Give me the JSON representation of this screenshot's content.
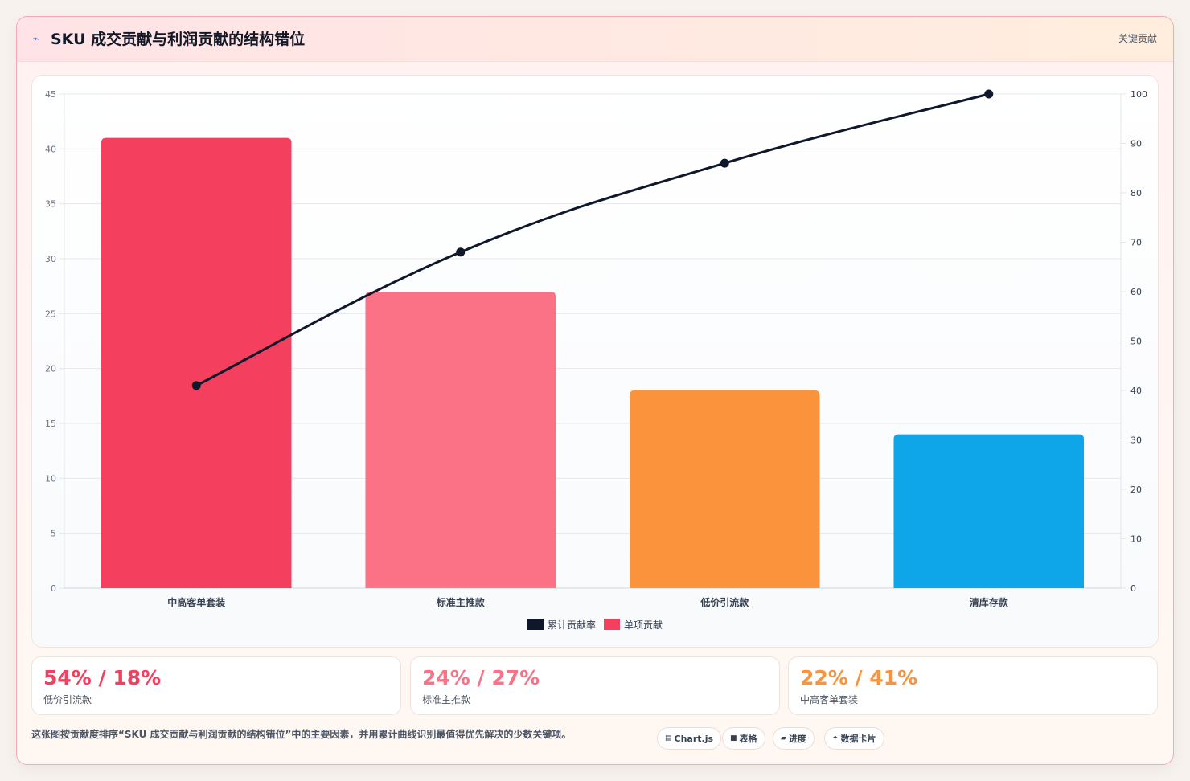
{
  "header": {
    "icon": "trend-icon",
    "title": "SKU 成交贡献与利润贡献的结构错位",
    "tag": "关键贡献"
  },
  "chart_data": {
    "type": "bar",
    "categories": [
      "中高客单套装",
      "标准主推款",
      "低价引流款",
      "清库存款"
    ],
    "series": [
      {
        "name": "累计贡献率",
        "type": "line",
        "axis": "right",
        "values": [
          41,
          68,
          86,
          100
        ],
        "color": "#0f172a"
      },
      {
        "name": "单项贡献",
        "type": "bar",
        "axis": "left",
        "values": [
          41,
          27,
          18,
          14
        ],
        "colors": [
          "#f43f5e",
          "#fb7185",
          "#fb923c",
          "#0ea5e9"
        ]
      }
    ],
    "y_left": {
      "min": 0,
      "max": 45,
      "step": 5,
      "ticks": [
        "0",
        "5",
        "10",
        "15",
        "20",
        "25",
        "30",
        "35",
        "40",
        "45"
      ]
    },
    "y_right": {
      "min": 0,
      "max": 100,
      "step": 10,
      "ticks": [
        "0",
        "10",
        "20",
        "30",
        "40",
        "50",
        "60",
        "70",
        "80",
        "90",
        "100"
      ]
    },
    "legend_position": "bottom",
    "grid": true
  },
  "stats": [
    {
      "value": "54% / 18%",
      "label": "低价引流款",
      "color": "#f43f5e"
    },
    {
      "value": "24% / 27%",
      "label": "标准主推款",
      "color": "#fb7185"
    },
    {
      "value": "22% / 41%",
      "label": "中高客单套装",
      "color": "#fb923c"
    }
  ],
  "footnote": "这张图按贡献度排序“SKU 成交贡献与利润贡献的结构错位”中的主要因素，并用累计曲线识别最值得优先解决的少数关键项。",
  "chips": [
    {
      "icon": "chart-icon",
      "glyph": "▤",
      "label": "Chart.js"
    },
    {
      "icon": "table-icon",
      "glyph": "■",
      "label": "表格"
    },
    {
      "icon": "progress-icon",
      "glyph": "▰",
      "label": "进度"
    },
    {
      "icon": "sparkle-icon",
      "glyph": "✦",
      "label": "数据卡片"
    }
  ]
}
